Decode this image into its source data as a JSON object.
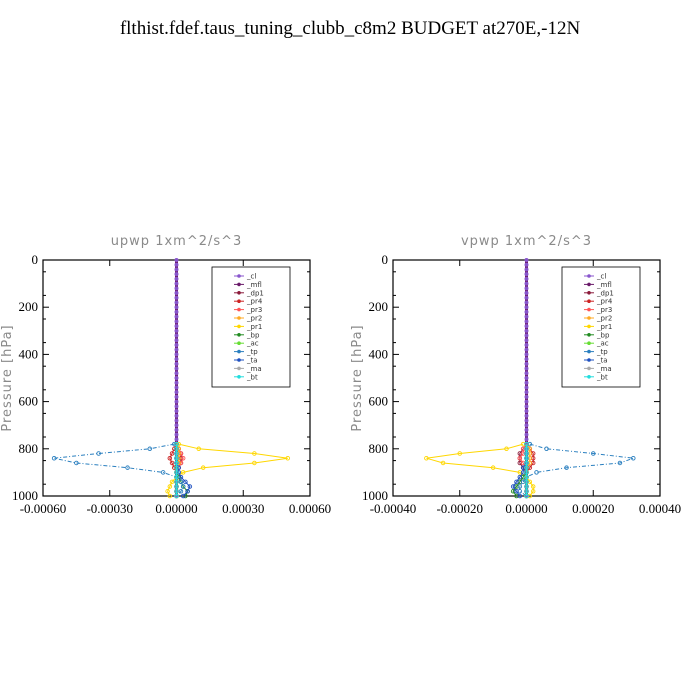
{
  "title": "flthist.fdef.taus_tuning_clubb_c8m2  BUDGET at270E,-12N",
  "chart_data": [
    {
      "type": "line",
      "panel_title": "upwp   1xm^2/s^3",
      "ylabel": "Pressure [hPa]",
      "xlim": [
        -0.0006,
        0.0006
      ],
      "ylim": [
        0,
        1000
      ],
      "y_inverted": true,
      "xticks": [
        -0.0006,
        -0.0003,
        0,
        0.0003,
        0.0006
      ],
      "xtick_labels": [
        "-0.00060",
        "-0.00030",
        "0.00000",
        "0.00030",
        "0.00060"
      ],
      "yticks": [
        0,
        200,
        400,
        600,
        800,
        1000
      ],
      "ytick_labels": [
        "0",
        "200",
        "400",
        "600",
        "800",
        "1000"
      ],
      "legend_position": "top-right",
      "levels": [
        780,
        800,
        820,
        840,
        860,
        880,
        900,
        920,
        940,
        960,
        980,
        1000
      ],
      "series": [
        {
          "name": "_cl",
          "color": "#8855cc",
          "values": [
            0,
            0,
            0,
            0,
            0,
            0,
            0,
            0,
            0,
            0,
            0,
            0
          ]
        },
        {
          "name": "_mfl",
          "color": "#6a1a6a",
          "values": [
            0,
            0,
            0,
            0,
            0,
            0,
            0,
            0,
            0,
            0,
            0,
            0
          ]
        },
        {
          "name": "_dp1",
          "color": "#8b1a3a",
          "values": [
            0,
            1e-05,
            2e-05,
            2e-05,
            2e-05,
            1e-05,
            0,
            0,
            0,
            0,
            0,
            0
          ]
        },
        {
          "name": "_pr4",
          "color": "#cc2222",
          "values": [
            0,
            -1e-05,
            -2e-05,
            -3e-05,
            -2e-05,
            -1e-05,
            0,
            0,
            0,
            0,
            0,
            0
          ]
        },
        {
          "name": "_pr3",
          "color": "#ff5555",
          "values": [
            0,
            1e-05,
            2e-05,
            3e-05,
            2e-05,
            1e-05,
            0,
            0,
            0,
            0,
            0,
            0
          ]
        },
        {
          "name": "_pr2",
          "color": "#ffaa22",
          "values": [
            0,
            1e-05,
            1e-05,
            1e-05,
            1e-05,
            0,
            0,
            0,
            0,
            0,
            0,
            0
          ]
        },
        {
          "name": "_pr1",
          "color": "#ffd700",
          "values": [
            1e-05,
            0.0001,
            0.00035,
            0.0005,
            0.00035,
            0.00012,
            3e-05,
            0,
            -2e-05,
            -3e-05,
            -4e-05,
            -3e-05
          ]
        },
        {
          "name": "_bp",
          "color": "#228b22",
          "values": [
            0,
            0,
            0,
            0,
            0,
            0,
            0,
            1e-05,
            2e-05,
            3e-05,
            5e-05,
            4e-05
          ]
        },
        {
          "name": "_ac",
          "color": "#66dd33",
          "values": [
            0,
            0,
            0,
            0,
            0,
            0,
            0,
            0,
            0,
            0,
            0,
            0
          ]
        },
        {
          "name": "_tp",
          "color": "#2a7fbf",
          "values": [
            -1e-05,
            -0.00012,
            -0.00035,
            -0.00055,
            -0.00045,
            -0.00022,
            -6e-05,
            0,
            2e-05,
            3e-05,
            2e-05,
            0
          ]
        },
        {
          "name": "_ta",
          "color": "#1e50c0",
          "values": [
            0,
            0,
            0,
            0,
            0,
            1e-05,
            1e-05,
            2e-05,
            4e-05,
            6e-05,
            5e-05,
            3e-05
          ]
        },
        {
          "name": "_ma",
          "color": "#aaaaaa",
          "values": [
            0,
            0,
            0,
            0,
            0,
            0,
            0,
            0,
            0,
            0,
            0,
            0
          ]
        },
        {
          "name": "_bt",
          "color": "#22dddd",
          "values": [
            0,
            0,
            0,
            0,
            0,
            0,
            0,
            0,
            0,
            0,
            0,
            0
          ]
        }
      ]
    },
    {
      "type": "line",
      "panel_title": "vpwp   1xm^2/s^3",
      "ylabel": "Pressure [hPa]",
      "xlim": [
        -0.0004,
        0.0004
      ],
      "ylim": [
        0,
        1000
      ],
      "y_inverted": true,
      "xticks": [
        -0.0004,
        -0.0002,
        0,
        0.0002,
        0.0004
      ],
      "xtick_labels": [
        "-0.00040",
        "-0.00020",
        "0.00000",
        "0.00020",
        "0.00040"
      ],
      "yticks": [
        0,
        200,
        400,
        600,
        800,
        1000
      ],
      "ytick_labels": [
        "0",
        "200",
        "400",
        "600",
        "800",
        "1000"
      ],
      "legend_position": "top-right",
      "levels": [
        780,
        800,
        820,
        840,
        860,
        880,
        900,
        920,
        940,
        960,
        980,
        1000
      ],
      "series": [
        {
          "name": "_cl",
          "color": "#8855cc",
          "values": [
            0,
            0,
            0,
            0,
            0,
            0,
            0,
            0,
            0,
            0,
            0,
            0
          ]
        },
        {
          "name": "_mfl",
          "color": "#6a1a6a",
          "values": [
            0,
            0,
            0,
            0,
            0,
            0,
            0,
            0,
            0,
            0,
            0,
            0
          ]
        },
        {
          "name": "_dp1",
          "color": "#8b1a3a",
          "values": [
            0,
            -1e-05,
            -2e-05,
            -2e-05,
            -2e-05,
            -1e-05,
            0,
            0,
            0,
            0,
            0,
            0
          ]
        },
        {
          "name": "_pr4",
          "color": "#cc2222",
          "values": [
            0,
            1e-05,
            2e-05,
            2e-05,
            2e-05,
            1e-05,
            0,
            0,
            0,
            0,
            0,
            0
          ]
        },
        {
          "name": "_pr3",
          "color": "#ff5555",
          "values": [
            0,
            -1e-05,
            -1e-05,
            -2e-05,
            -1e-05,
            0,
            0,
            0,
            0,
            0,
            0,
            0
          ]
        },
        {
          "name": "_pr2",
          "color": "#ffaa22",
          "values": [
            0,
            1e-05,
            1e-05,
            1e-05,
            1e-05,
            0,
            0,
            0,
            0,
            0,
            0,
            0
          ]
        },
        {
          "name": "_pr1",
          "color": "#ffd700",
          "values": [
            -1e-05,
            -6e-05,
            -0.0002,
            -0.0003,
            -0.00025,
            -0.0001,
            -2e-05,
            0,
            1e-05,
            2e-05,
            2e-05,
            1e-05
          ]
        },
        {
          "name": "_bp",
          "color": "#228b22",
          "values": [
            0,
            0,
            0,
            0,
            0,
            0,
            0,
            -1e-05,
            -2e-05,
            -3e-05,
            -4e-05,
            -3e-05
          ]
        },
        {
          "name": "_ac",
          "color": "#66dd33",
          "values": [
            0,
            0,
            0,
            0,
            0,
            0,
            0,
            0,
            0,
            0,
            0,
            0
          ]
        },
        {
          "name": "_tp",
          "color": "#2a7fbf",
          "values": [
            1e-05,
            6e-05,
            0.0002,
            0.00032,
            0.00028,
            0.00012,
            3e-05,
            0,
            -1e-05,
            -2e-05,
            -2e-05,
            0
          ]
        },
        {
          "name": "_ta",
          "color": "#1e50c0",
          "values": [
            0,
            0,
            0,
            0,
            0,
            -1e-05,
            -1e-05,
            -2e-05,
            -3e-05,
            -4e-05,
            -3e-05,
            -2e-05
          ]
        },
        {
          "name": "_ma",
          "color": "#aaaaaa",
          "values": [
            0,
            0,
            0,
            0,
            0,
            0,
            0,
            0,
            0,
            0,
            0,
            0
          ]
        },
        {
          "name": "_bt",
          "color": "#22dddd",
          "values": [
            0,
            0,
            0,
            0,
            0,
            0,
            0,
            0,
            0,
            0,
            0,
            0
          ]
        }
      ]
    }
  ]
}
